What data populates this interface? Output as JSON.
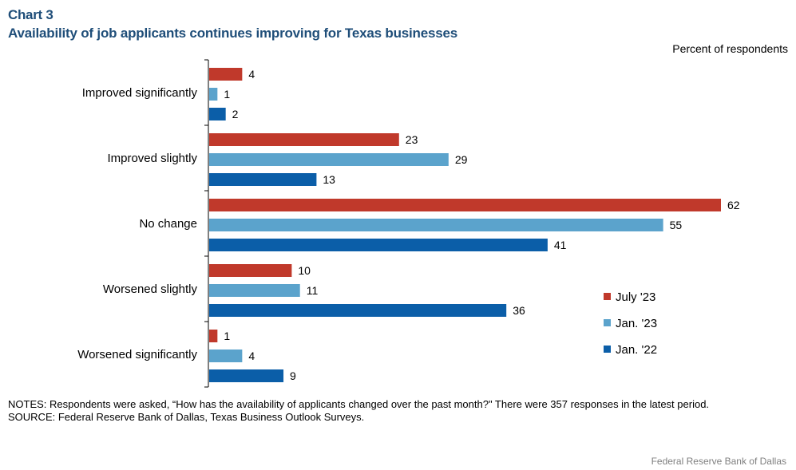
{
  "header": {
    "chart_number": "Chart 3",
    "title": "Availability of job applicants continues improving for Texas businesses",
    "unit": "Percent of respondents"
  },
  "footer": {
    "notes": "NOTES: Respondents were asked, “How has the availability  of applicants changed over the past month?\" There were 357 responses in the latest period.",
    "source": "SOURCE: Federal Reserve Bank of  Dallas, Texas Business Outlook Surveys.",
    "credit": "Federal  Reserve  Bank of Dallas"
  },
  "chart_data": {
    "type": "bar",
    "orientation": "horizontal",
    "categories": [
      "Improved significantly",
      "Improved slightly",
      "No change",
      "Worsened slightly",
      "Worsened significantly"
    ],
    "series": [
      {
        "name": "July '23",
        "color": "#c0392b",
        "values": [
          4,
          23,
          62,
          10,
          1
        ]
      },
      {
        "name": "Jan. '23",
        "color": "#5ba3cc",
        "values": [
          1,
          29,
          55,
          11,
          4
        ]
      },
      {
        "name": "Jan. '22",
        "color": "#0b5ea8",
        "values": [
          2,
          13,
          41,
          36,
          9
        ]
      }
    ],
    "xlim": [
      0,
      62
    ],
    "data_labels": true,
    "grid": false,
    "legend_position": "right"
  }
}
